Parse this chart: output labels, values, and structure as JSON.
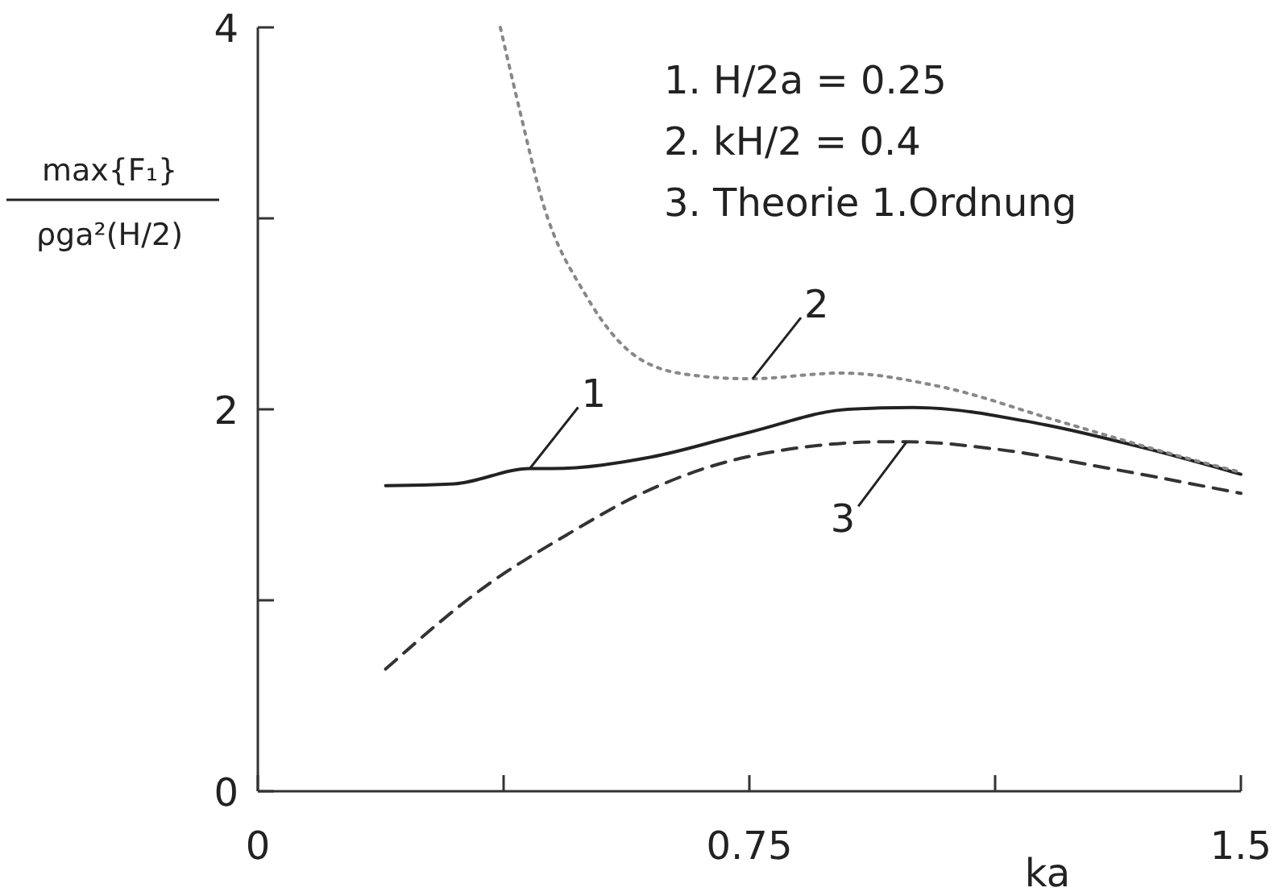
{
  "chart_data": {
    "type": "line",
    "xlabel": "ka",
    "ylabel": "max{F₁}\nρga²(H/2)",
    "xlim": [
      0,
      1.5
    ],
    "xticks": [
      0,
      0.75,
      1.5,
      {
        "value": 0.375,
        "label": null
      },
      {
        "value": 1.125,
        "label": null
      }
    ],
    "ylim": [
      0,
      4
    ],
    "yticks": [
      0,
      2,
      4,
      {
        "value": 1,
        "label": null
      },
      {
        "value": 3,
        "label": null
      }
    ],
    "grid": false,
    "marker": "none",
    "series": [
      {
        "color": "#222222",
        "line_style": "solid",
        "x": [
          0.195,
          0.3,
          0.415,
          0.45,
          0.6,
          0.75,
          0.9,
          1.0,
          1.2,
          1.35,
          1.5
        ],
        "values": [
          1.6,
          1.61,
          1.69,
          1.69,
          1.75,
          1.88,
          2.0,
          2.01,
          1.92,
          1.8,
          1.66
        ]
      },
      {
        "color": "#888888",
        "line_style": "dotted",
        "x": [
          0.37,
          0.4,
          0.435,
          0.5,
          0.58,
          0.66,
          0.75,
          0.89,
          1.04,
          1.22,
          1.39,
          1.5
        ],
        "values": [
          4.0,
          3.56,
          3.08,
          2.6,
          2.27,
          2.18,
          2.16,
          2.19,
          2.12,
          1.94,
          1.77,
          1.67
        ]
      },
      {
        "color": "#333333",
        "line_style": "dashed",
        "x": [
          0.195,
          0.35,
          0.47,
          0.58,
          0.745,
          0.96,
          0.99,
          1.13,
          1.3,
          1.5
        ],
        "values": [
          0.64,
          1.08,
          1.34,
          1.55,
          1.75,
          1.83,
          1.83,
          1.79,
          1.69,
          1.56
        ]
      }
    ],
    "annotations": [
      "1. H/2a =  0.25",
      "2. kH/2 =  0.4",
      "3. Theorie 1.Ordnung",
      {
        "text": "1",
        "x": 0.415,
        "y": 1.69
      },
      {
        "text": "2",
        "x": 0.755,
        "y": 2.16
      },
      {
        "text": "3",
        "x": 0.99,
        "y": 1.83
      }
    ]
  }
}
